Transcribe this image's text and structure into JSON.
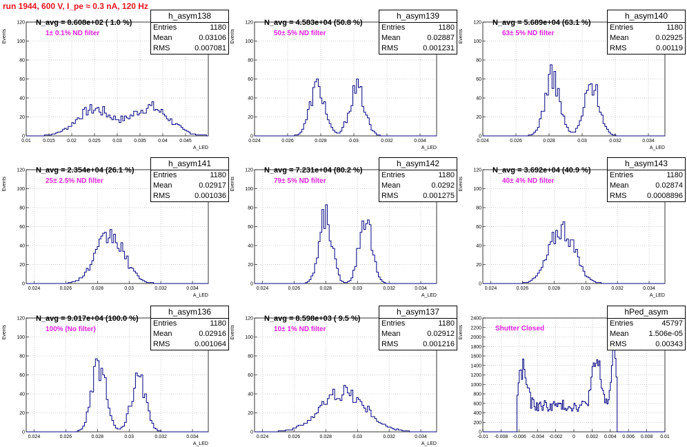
{
  "run_title": "run 1944,   600 V, I_pe ≈ 0.3 nA, 120 Hz",
  "colors": {
    "line": "#000080",
    "title": "#e8141e",
    "filter": "#e020e0"
  },
  "chart_data": [
    {
      "type": "bar",
      "name": "h_asym138",
      "navg": "N_avg = 8.608e+02 ( 1.0 %)",
      "filter": "1± 0.1% ND filter",
      "stats": {
        "entries": "1180",
        "mean": "0.03106",
        "rms": "0.007081"
      },
      "xlim": [
        0.01,
        0.05
      ],
      "ylim": [
        0,
        120
      ],
      "xticks": [
        "0.01",
        "0.015",
        "0.02",
        "0.025",
        "0.03",
        "0.035",
        "0.04",
        "0.045"
      ],
      "yticks": [
        "0",
        "20",
        "40",
        "60",
        "80",
        "100",
        "120"
      ],
      "ylabel": "Events",
      "xlabel": "A_LED",
      "peaks": [
        [
          0.0248,
          28,
          0.0038
        ],
        [
          0.0372,
          30,
          0.0042
        ]
      ]
    },
    {
      "type": "bar",
      "name": "h_asym139",
      "navg": "N_avg = 4.583e+04 (50.8 %)",
      "filter": "50± 5% ND filter",
      "stats": {
        "entries": "1180",
        "mean": "0.02887",
        "rms": "0.001231"
      },
      "xlim": [
        0.024,
        0.035
      ],
      "ylim": [
        0,
        120
      ],
      "xticks": [
        "0.024",
        "0.026",
        "0.028",
        "0.03",
        "0.032",
        "0.034"
      ],
      "yticks": [
        "0",
        "20",
        "40",
        "60",
        "80",
        "100",
        "120"
      ],
      "ylabel": "Events",
      "xlabel": "A_LED",
      "peaks": [
        [
          0.0278,
          52,
          0.00045
        ],
        [
          0.0302,
          50,
          0.00045
        ]
      ]
    },
    {
      "type": "bar",
      "name": "h_asym140",
      "navg": "N_avg = 5.689e+04 (63.1 %)",
      "filter": "63± 5% ND filter",
      "stats": {
        "entries": "1180",
        "mean": "0.02925",
        "rms": "0.00119"
      },
      "xlim": [
        0.024,
        0.035
      ],
      "ylim": [
        0,
        120
      ],
      "xticks": [
        "0.024",
        "0.026",
        "0.028",
        "0.03",
        "0.032",
        "0.034"
      ],
      "yticks": [
        "0",
        "20",
        "40",
        "60",
        "80",
        "100",
        "120"
      ],
      "ylabel": "Events",
      "xlabel": "A_LED",
      "peaks": [
        [
          0.0282,
          62,
          0.00045
        ],
        [
          0.0306,
          55,
          0.00045
        ]
      ]
    },
    {
      "type": "bar",
      "name": "h_asym141",
      "navg": "N_avg = 2.354e+04 (26.1 %)",
      "filter": "25± 2.5% ND filter",
      "stats": {
        "entries": "1180",
        "mean": "0.02917",
        "rms": "0.001036"
      },
      "xlim": [
        0.0235,
        0.035
      ],
      "ylim": [
        0,
        120
      ],
      "xticks": [
        "0.024",
        "0.026",
        "0.028",
        "0.03",
        "0.032",
        "0.034"
      ],
      "yticks": [
        "0",
        "20",
        "40",
        "60",
        "80",
        "100",
        "120"
      ],
      "ylabel": "Events",
      "xlabel": "A_LED",
      "peaks": [
        [
          0.0288,
          50,
          0.0009
        ]
      ]
    },
    {
      "type": "bar",
      "name": "h_asym142",
      "navg": "N_avg = 7.231e+04 (80.2 %)",
      "filter": "79± 5% ND filter",
      "stats": {
        "entries": "1180",
        "mean": "0.0292",
        "rms": "0.001275"
      },
      "xlim": [
        0.0235,
        0.035
      ],
      "ylim": [
        0,
        120
      ],
      "xticks": [
        "0.024",
        "0.026",
        "0.028",
        "0.03",
        "0.032",
        "0.034"
      ],
      "yticks": [
        "0",
        "20",
        "40",
        "60",
        "80",
        "100",
        "120"
      ],
      "ylabel": "Events",
      "xlabel": "A_LED",
      "peaks": [
        [
          0.028,
          72,
          0.0004
        ],
        [
          0.0305,
          72,
          0.0004
        ]
      ]
    },
    {
      "type": "bar",
      "name": "h_asym143",
      "navg": "N_avg = 3.692e+04 (40.9 %)",
      "filter": "40± 4% ND filter",
      "stats": {
        "entries": "1180",
        "mean": "0.02874",
        "rms": "0.0008896"
      },
      "xlim": [
        0.0235,
        0.035
      ],
      "ylim": [
        0,
        120
      ],
      "xticks": [
        "0.024",
        "0.026",
        "0.028",
        "0.03",
        "0.032",
        "0.034"
      ],
      "yticks": [
        "0",
        "20",
        "40",
        "60",
        "80",
        "100",
        "120"
      ],
      "ylabel": "Events",
      "xlabel": "A_LED",
      "peaks": [
        [
          0.0285,
          58,
          0.0008
        ]
      ]
    },
    {
      "type": "bar",
      "name": "h_asym136",
      "navg": "N_avg = 9.017e+04 (100.0 %)",
      "filter": "100% (No filter)",
      "stats": {
        "entries": "1180",
        "mean": "0.02916",
        "rms": "0.001064"
      },
      "xlim": [
        0.0235,
        0.035
      ],
      "ylim": [
        0,
        120
      ],
      "xticks": [
        "0.024",
        "0.026",
        "0.028",
        "0.03",
        "0.032",
        "0.034"
      ],
      "yticks": [
        "0",
        "20",
        "40",
        "60",
        "80",
        "100",
        "120"
      ],
      "ylabel": "Events",
      "xlabel": "A_LED",
      "peaks": [
        [
          0.0281,
          70,
          0.00045
        ],
        [
          0.0306,
          56,
          0.00045
        ]
      ]
    },
    {
      "type": "bar",
      "name": "h_asym137",
      "navg": "N_avg = 8.598e+03 ( 9.5 %)",
      "filter": "10± 1% ND filter",
      "stats": {
        "entries": "1180",
        "mean": "0.02912",
        "rms": "0.001216"
      },
      "xlim": [
        0.0235,
        0.035
      ],
      "ylim": [
        0,
        120
      ],
      "xticks": [
        "0.024",
        "0.026",
        "0.028",
        "0.03",
        "0.032",
        "0.034"
      ],
      "yticks": [
        "0",
        "20",
        "40",
        "60",
        "80",
        "100",
        "120"
      ],
      "ylabel": "Events",
      "xlabel": "A_LED",
      "peaks": [
        [
          0.0291,
          42,
          0.0014
        ]
      ]
    },
    {
      "type": "bar",
      "name": "hPed_asym",
      "navg": "",
      "filter": "Shutter Closed",
      "stats": {
        "entries": "45797",
        "mean": "1.506e-05",
        "rms": "0.00343"
      },
      "xlim": [
        -0.01,
        0.01
      ],
      "ylim": [
        0,
        2400
      ],
      "xticks": [
        "-0.01",
        "-0.008",
        "-0.006",
        "-0.004",
        "-0.002",
        "0",
        "0.002",
        "0.004",
        "0.006",
        "0.008",
        "0.01"
      ],
      "yticks": [
        "0",
        "200",
        "400",
        "600",
        "800",
        "1000",
        "1200",
        "1400",
        "1600",
        "1800",
        "2000",
        "2200",
        "2400"
      ],
      "ylabel": "Events",
      "xlabel": "",
      "ped": true
    }
  ]
}
